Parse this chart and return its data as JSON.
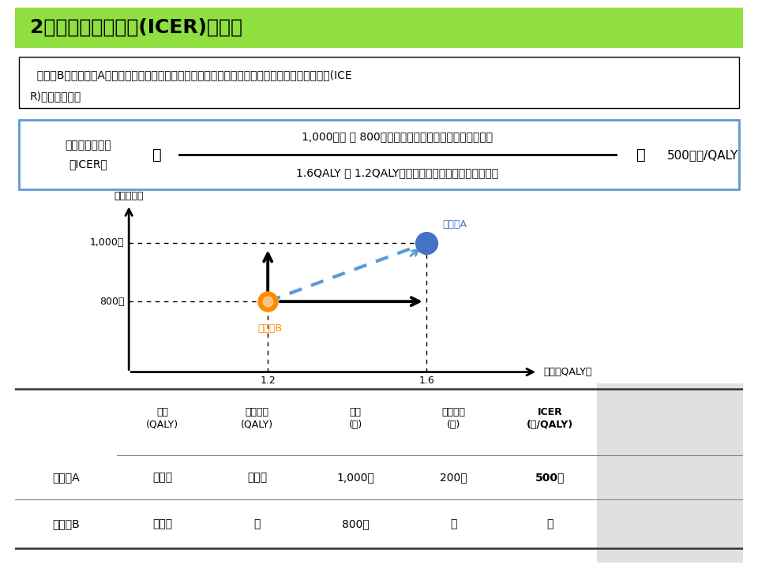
{
  "title": "2．増分費用効果比(ICER)の算出",
  "title_bg": "#8fdf40",
  "desc_line1": "  医薬品Bから医薬品Aに治療が置き換わった場合の効果及び費用の増分を算出し、増分費用効果比(ICE",
  "desc_line2": "R)を算出する。",
  "formula_left1": "増分費用効果比",
  "formula_left2": "（ICER）",
  "formula_eq1": "＝",
  "formula_numerator": "1,000万円 － 800万円（費用がどのくらい増加するか）",
  "formula_denominator": "1.6QALY － 1.2QALY（効果がどのくらい増加するか）",
  "formula_eq2": "＝",
  "formula_result": "500万円/QALY",
  "formula_box_color": "#5b9bd5",
  "graph_xlabel": "効果（QALY）",
  "graph_ylabel": "費用（円）",
  "point_B": [
    1.2,
    800
  ],
  "point_A": [
    1.6,
    1000
  ],
  "label_A": "医薬品A",
  "label_B": "医薬品B",
  "color_A": "#4472C4",
  "color_B": "#FF8C00",
  "dotted_line_color": "#5b9bd5",
  "table_col0_labels": [
    "医薬品A",
    "医薬品B"
  ],
  "table_headers": [
    "効果\n(QALY)",
    "増分効果\n(QALY)",
    "費用\n(円)",
    "増分費用\n(円)",
    "ICER\n(円/QALY)"
  ],
  "table_row_A": [
    "１．６",
    "０．４",
    "1,000万",
    "200万",
    "500万"
  ],
  "table_row_B": [
    "１．２",
    "－",
    "800万",
    "－",
    "－"
  ],
  "icer_col_bg": "#e0e0e0",
  "bg_color": "#ffffff"
}
